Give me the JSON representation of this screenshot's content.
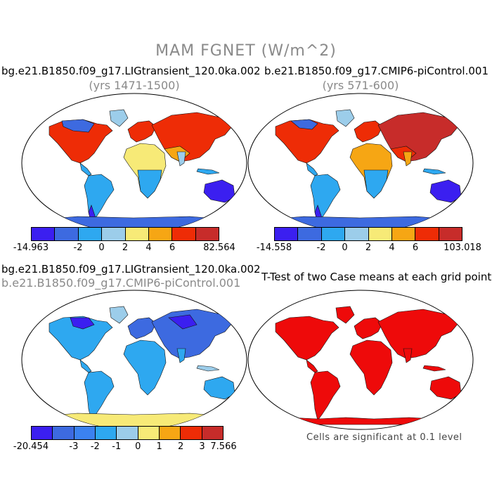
{
  "main_title": "MAM FGNET (W/m^2)",
  "panels": [
    {
      "title": "bg.e21.B1850.f09_g17.LIGtransient_120.0ka.002",
      "subtitle": "(yrs 1471-1500)"
    },
    {
      "title": "b.e21.B1850.f09_g17.CMIP6-piControl.001",
      "subtitle": "(yrs 571-600)"
    },
    {
      "title": "bg.e21.B1850.f09_g17.LIGtransient_120.0ka.002",
      "subtitle": "b.e21.B1850.f09_g17.CMIP6-piControl.001"
    },
    {
      "title": "T-Test of two Case means at each grid point",
      "subtitle": ""
    }
  ],
  "colorbars": [
    {
      "colors": [
        "#3b1ff0",
        "#3d6ae0",
        "#2ea8f0",
        "#9ccdea",
        "#f7ea77",
        "#f6a614",
        "#ee2c06",
        "#c72c2a"
      ],
      "ticks": [
        "-14.963",
        "-2",
        "0",
        "2",
        "4",
        "6",
        "82.564"
      ]
    },
    {
      "colors": [
        "#3b1ff0",
        "#3d6ae0",
        "#2ea8f0",
        "#9ccdea",
        "#f7ea77",
        "#f6a614",
        "#ee2c06",
        "#c72c2a"
      ],
      "ticks": [
        "-14.558",
        "-2",
        "0",
        "2",
        "4",
        "6",
        "103.018"
      ]
    },
    {
      "colors": [
        "#3b1ff0",
        "#3d6ae0",
        "#3b82f0",
        "#2ea8f0",
        "#9ccdea",
        "#f7ea77",
        "#f6a614",
        "#ee2c06",
        "#c72c2a"
      ],
      "ticks": [
        "-20.454",
        "-3",
        "-2",
        "-1",
        "0",
        "1",
        "2",
        "3",
        "7.566"
      ]
    }
  ],
  "significance_note": "Cells are significant at 0.1 level"
}
